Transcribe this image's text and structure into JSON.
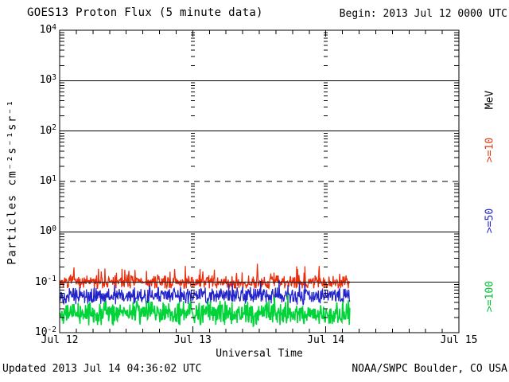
{
  "title": "GOES13 Proton Flux (5 minute data)",
  "begin_label": "Begin: 2013 Jul 12 0000 UTC",
  "footer": {
    "updated": "Updated 2013 Jul 14 04:36:02 UTC",
    "source": "NOAA/SWPC Boulder, CO USA"
  },
  "axis": {
    "x_label": "Universal Time",
    "y_label": "Particles cm⁻²s⁻¹sr⁻¹"
  },
  "legend": {
    "unit_label": "MeV",
    "items": [
      {
        "label": ">=10",
        "color": "#d93c10"
      },
      {
        "label": ">=50",
        "color": "#2525c8"
      },
      {
        "label": ">=100",
        "color": "#00c235"
      }
    ]
  },
  "chart_data": {
    "type": "line",
    "title": "GOES13 Proton Flux (5 minute data)",
    "xlabel": "Universal Time",
    "ylabel": "Particles cm-2 s-1 sr-1",
    "x_start": "2013 Jul 12 0000 UTC",
    "x_end": "2013 Jul 15 0000 UTC",
    "x_tick_labels": [
      "Jul 12",
      "Jul 13",
      "Jul 14",
      "Jul 15"
    ],
    "x_range_days": 3,
    "minor_x_tick_hours": 3,
    "y_ticks_exp": [
      4,
      3,
      2,
      1,
      0,
      -1,
      -2
    ],
    "ylim": [
      0.01,
      10000
    ],
    "ylim_exp": [
      -2,
      4
    ],
    "grid_solid_exps": [
      3,
      2,
      0,
      -1
    ],
    "threshold_dashed_at_exp": 1,
    "vertical_gridline_days": [
      1,
      2
    ],
    "cadence_minutes": 5,
    "data_end_day_fraction": 2.18,
    "series": [
      {
        "name": ">=10 MeV",
        "color": "#ea2e0b",
        "width": 1.25,
        "seed": 7,
        "baseline_flux": 0.1,
        "typ_range": [
          0.075,
          0.26
        ],
        "log_base": -1.0,
        "log_amp": 0.16,
        "spike_prob": 0.07,
        "spike_log": 0.3,
        "log_min": -1.12,
        "log_max": -0.6
      },
      {
        "name": ">=50 MeV",
        "color": "#2323ca",
        "width": 1.25,
        "seed": 13,
        "baseline_flux": 0.055,
        "typ_range": [
          0.033,
          0.115
        ],
        "log_base": -1.27,
        "log_amp": 0.19,
        "spike_prob": 0.05,
        "spike_log": 0.2,
        "log_min": -1.49,
        "log_max": -0.95
      },
      {
        "name": ">=100 MeV",
        "color": "#00d438",
        "width": 1.6,
        "seed": 42,
        "baseline_flux": 0.025,
        "typ_range": [
          0.013,
          0.057
        ],
        "log_base": -1.62,
        "log_amp": 0.27,
        "spike_prob": 0.05,
        "spike_log": 0.18,
        "log_min": -1.88,
        "log_max": -1.23
      }
    ]
  },
  "colors": {
    "frame": "#000000",
    "background": "#ffffff"
  }
}
